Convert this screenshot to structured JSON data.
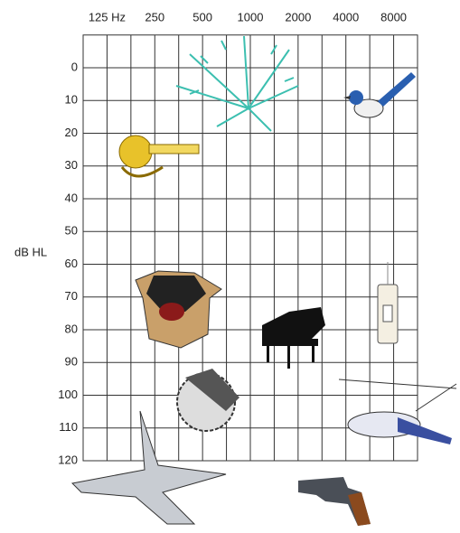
{
  "chart_data": {
    "type": "audiogram",
    "categories": [
      "125 Hz",
      "250",
      "500",
      "1000",
      "2000",
      "4000",
      "8000"
    ],
    "y_label": "dB HL",
    "ylim": [
      -10,
      120
    ],
    "yticks": [
      0,
      10,
      20,
      30,
      40,
      50,
      60,
      70,
      80,
      90,
      100,
      110,
      120
    ],
    "reversed": true,
    "grid": true,
    "bold_category": "1000"
  }
}
